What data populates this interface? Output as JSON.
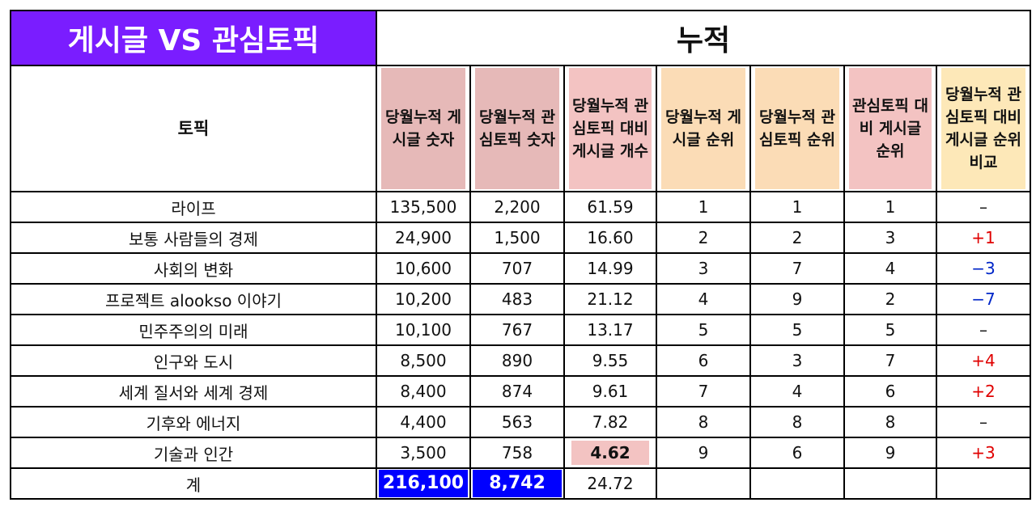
{
  "title": "게시글 VS 관심토픽",
  "section_title": "누적",
  "headers": {
    "topic": "토픽",
    "posts": "당월누적 게시글 숫자",
    "interest": "당월누적 관심토픽 숫자",
    "ratio": "당월누적 관심토픽 대비 게시글 개수",
    "post_rank": "당월누적 게시글 순위",
    "interest_rank": "당월누적 관심토픽 순위",
    "ratio_rank": "관심토픽 대비 게시글 순위",
    "compare": "당월누적 관심토픽 대비 게시글 순위 비교"
  },
  "rows": [
    {
      "topic": "라이프",
      "posts": "135,500",
      "interest": "2,200",
      "ratio": "61.59",
      "post_rank": "1",
      "interest_rank": "1",
      "ratio_rank": "1",
      "compare": "–",
      "compare_sign": "none"
    },
    {
      "topic": "보통 사람들의 경제",
      "posts": "24,900",
      "interest": "1,500",
      "ratio": "16.60",
      "post_rank": "2",
      "interest_rank": "2",
      "ratio_rank": "3",
      "compare": "+1",
      "compare_sign": "pos"
    },
    {
      "topic": "사회의 변화",
      "posts": "10,600",
      "interest": "707",
      "ratio": "14.99",
      "post_rank": "3",
      "interest_rank": "7",
      "ratio_rank": "4",
      "compare": "−3",
      "compare_sign": "neg"
    },
    {
      "topic": "프로젝트 alookso 이야기",
      "posts": "10,200",
      "interest": "483",
      "ratio": "21.12",
      "post_rank": "4",
      "interest_rank": "9",
      "ratio_rank": "2",
      "compare": "−7",
      "compare_sign": "neg"
    },
    {
      "topic": "민주주의의 미래",
      "posts": "10,100",
      "interest": "767",
      "ratio": "13.17",
      "post_rank": "5",
      "interest_rank": "5",
      "ratio_rank": "5",
      "compare": "–",
      "compare_sign": "none"
    },
    {
      "topic": "인구와 도시",
      "posts": "8,500",
      "interest": "890",
      "ratio": "9.55",
      "post_rank": "6",
      "interest_rank": "3",
      "ratio_rank": "7",
      "compare": "+4",
      "compare_sign": "pos"
    },
    {
      "topic": "세계 질서와 세계 경제",
      "posts": "8,400",
      "interest": "874",
      "ratio": "9.61",
      "post_rank": "7",
      "interest_rank": "4",
      "ratio_rank": "6",
      "compare": "+2",
      "compare_sign": "pos"
    },
    {
      "topic": "기후와 에너지",
      "posts": "4,400",
      "interest": "563",
      "ratio": "7.82",
      "post_rank": "8",
      "interest_rank": "8",
      "ratio_rank": "8",
      "compare": "–",
      "compare_sign": "none"
    },
    {
      "topic": "기술과 인간",
      "posts": "3,500",
      "interest": "758",
      "ratio": "4.62",
      "post_rank": "9",
      "interest_rank": "6",
      "ratio_rank": "9",
      "compare": "+3",
      "compare_sign": "pos",
      "ratio_highlight": true
    }
  ],
  "total": {
    "label": "계",
    "posts": "216,100",
    "interest": "8,742",
    "ratio": "24.72"
  },
  "colors": {
    "title_bg": "#7a1dff",
    "header_pink": "#e6b9b8",
    "header_peach": "#fbdcb6",
    "header_rose": "#f3c3c2",
    "header_cream": "#fde8b8",
    "total_highlight": "#0000ff",
    "positive": "#e00000",
    "negative": "#0026c8"
  }
}
